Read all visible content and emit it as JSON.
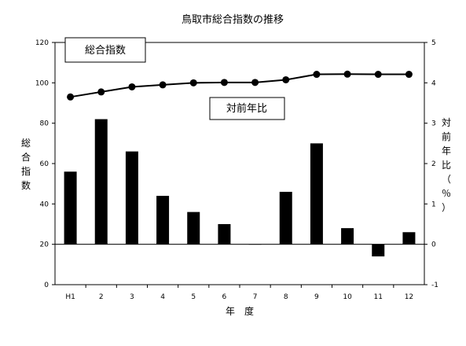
{
  "chart_data": {
    "type": "bar+line",
    "title": "鳥取市総合指数の推移",
    "xlabel": "年　度",
    "categories": [
      "H1",
      "2",
      "3",
      "4",
      "5",
      "6",
      "7",
      "8",
      "9",
      "10",
      "11",
      "12"
    ],
    "left_axis": {
      "label_chars": [
        "総",
        "合",
        "指",
        "数"
      ],
      "ylim": [
        0,
        120
      ],
      "ticks": [
        "0",
        "20",
        "40",
        "60",
        "80",
        "100",
        "120"
      ]
    },
    "right_axis": {
      "label_chars": [
        "対",
        "前",
        "年",
        "比",
        "（",
        "％",
        "）"
      ],
      "ylim": [
        -1,
        5
      ],
      "ticks": [
        "-1",
        "0",
        "1",
        "2",
        "3",
        "4",
        "5"
      ]
    },
    "series": [
      {
        "name": "総合指数",
        "type": "line",
        "axis": "left",
        "values": [
          93,
          95.5,
          98,
          99,
          100,
          100.2,
          100.2,
          101.5,
          104.2,
          104.3,
          104.2,
          104.2
        ]
      },
      {
        "name": "対前年比",
        "type": "bar",
        "axis": "right",
        "values": [
          1.8,
          3.1,
          2.3,
          1.2,
          0.8,
          0.5,
          0.0,
          1.3,
          2.5,
          0.4,
          -0.3,
          0.3
        ]
      }
    ],
    "legend": [
      "総合指数",
      "対前年比"
    ],
    "colors": {
      "bar": "#000000",
      "line": "#000000",
      "marker": "#000000"
    },
    "grid": false
  }
}
